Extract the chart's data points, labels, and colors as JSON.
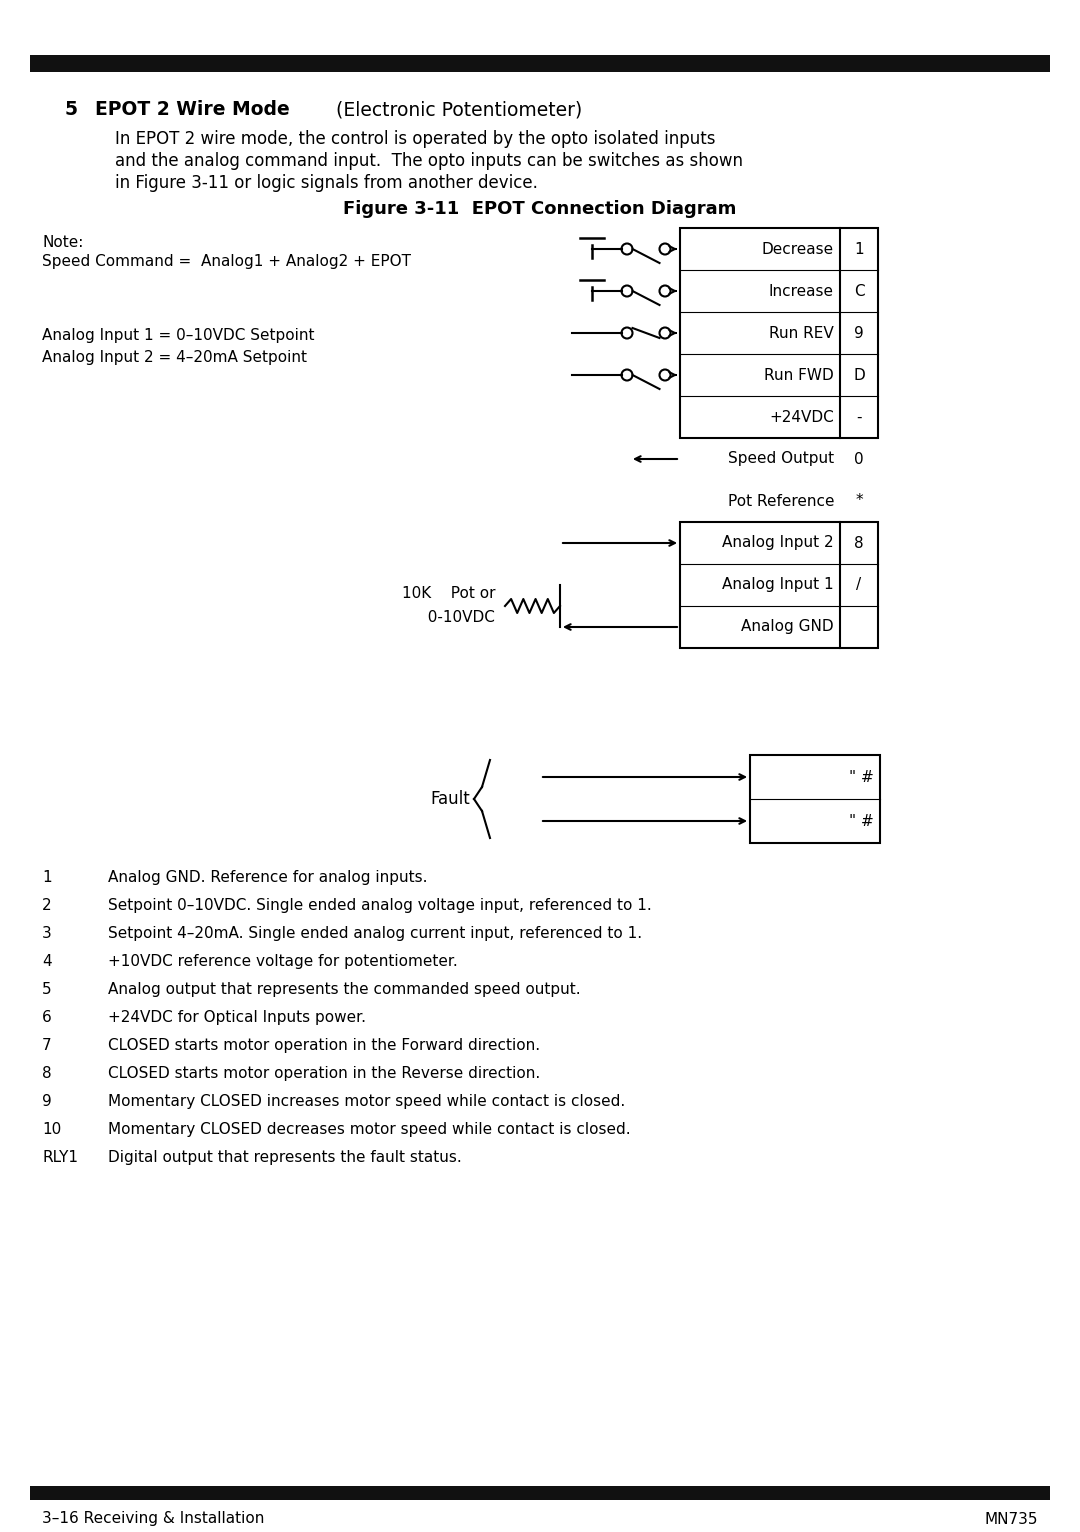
{
  "bg_color": "#ffffff",
  "title_num": "5",
  "title_bold": "EPOT 2 Wire Mode",
  "title_normal": " (Electronic Potentiometer)",
  "body_line1": "In EPOT 2 wire mode, the control is operated by the opto isolated inputs",
  "body_line2": "and the analog command input.  The opto inputs can be switches as shown",
  "body_line3": "in Figure 3-11 or logic signals from another device.",
  "fig_title": "Figure 3-11  EPOT Connection Diagram",
  "note_line1": "Note:",
  "note_line2": "Speed Command =  Analog1 + Analog2 + EPOT",
  "analog_line1": "Analog Input 1 = 0–10VDC Setpoint",
  "analog_line2": "Analog Input 2 = 4–20mA Setpoint",
  "terminal_labels": [
    "Decrease",
    "Increase",
    "Run REV",
    "Run FWD",
    "+24VDC",
    "Speed Output",
    "Pot Reference",
    "Analog Input 2",
    "Analog Input 1",
    "Analog GND"
  ],
  "terminal_ids": [
    "1",
    "C",
    "9",
    "D",
    "-",
    "0",
    "*",
    "8",
    "/",
    ""
  ],
  "pot_line1": "10K    Pot or",
  "pot_line2": "  0-10VDC",
  "fault_label": "Fault",
  "fault_t1": "\" #",
  "fault_t2": "\" #",
  "list_items": [
    [
      "1",
      "Analog GND. Reference for analog inputs."
    ],
    [
      "2",
      "Setpoint 0–10VDC. Single ended analog voltage input, referenced to 1."
    ],
    [
      "3",
      "Setpoint 4–20mA. Single ended analog current input, referenced to 1."
    ],
    [
      "4",
      "+10VDC reference voltage for potentiometer."
    ],
    [
      "5",
      "Analog output that represents the commanded speed output."
    ],
    [
      "6",
      "+24VDC for Optical Inputs power."
    ],
    [
      "7",
      "CLOSED starts motor operation in the Forward direction."
    ],
    [
      "8",
      "CLOSED starts motor operation in the Reverse direction."
    ],
    [
      "9",
      "Momentary CLOSED increases motor speed while contact is closed."
    ],
    [
      "10",
      "Momentary CLOSED decreases motor speed while contact is closed."
    ],
    [
      "RLY1",
      "Digital output that represents the fault status."
    ]
  ],
  "footer_left": "3–16 Receiving & Installation",
  "footer_right": "MN735",
  "bar_color": "#111111"
}
